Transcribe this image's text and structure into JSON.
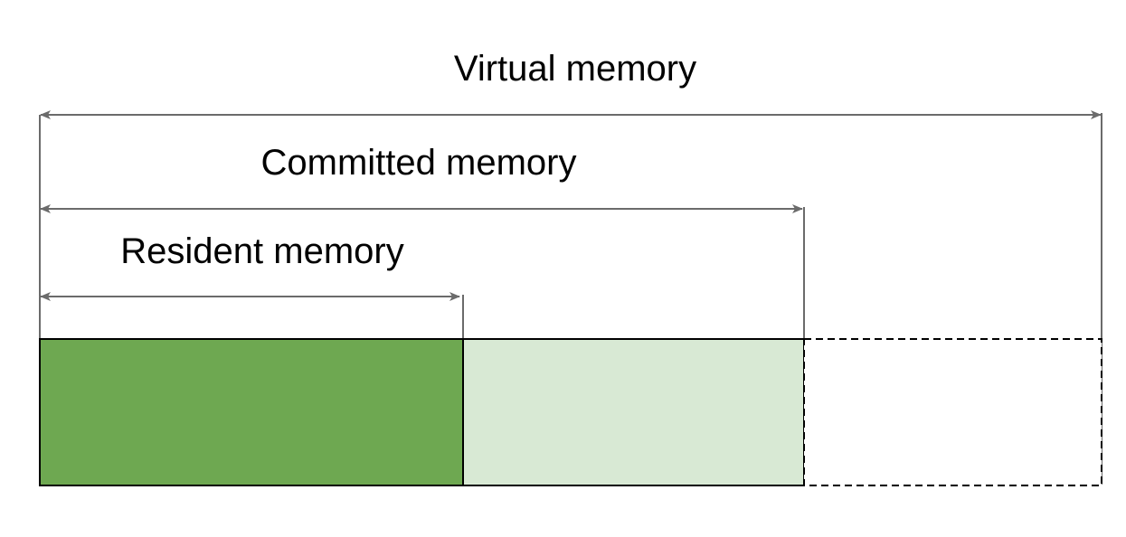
{
  "labels": {
    "virtual": "Virtual memory",
    "committed": "Committed memory",
    "resident": "Resident memory"
  },
  "colors": {
    "resident_fill": "#6ea851",
    "committed_fill": "#d8e9d4",
    "reserved_fill": "#ffffff",
    "arrow_stroke": "#6b6b6b",
    "box_stroke": "#000000"
  }
}
